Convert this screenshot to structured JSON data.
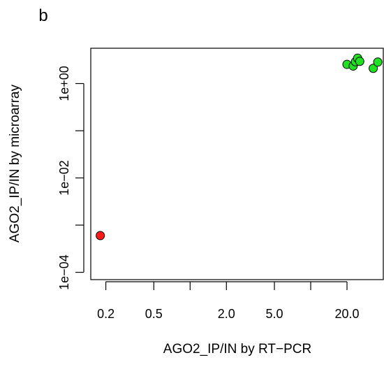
{
  "figure": {
    "panel_label": "b"
  },
  "chart_data": {
    "type": "scatter",
    "xlabel": "AGO2_IP/IN by RT−PCR",
    "ylabel": "AGO2_IP/IN by microarray",
    "x_scale": "log10",
    "y_scale": "log10",
    "xlim": [
      0.15,
      40
    ],
    "ylim": [
      7e-05,
      5.6
    ],
    "x_ticks": [
      0.1,
      0.2,
      0.5,
      1,
      2,
      5,
      10,
      20,
      50
    ],
    "x_tick_labels": [
      "",
      "0.2",
      "0.5",
      "",
      "2.0",
      "5.0",
      "",
      "20.0",
      ""
    ],
    "y_ticks": [
      0.0001,
      0.001,
      0.01,
      0.1,
      1
    ],
    "y_tick_labels": [
      "1e−04",
      "",
      "1e−02",
      "",
      "1e+00"
    ],
    "grid": false,
    "legend": "none",
    "points": [
      {
        "x": 0.18,
        "y": 0.0006,
        "color": "#ff1a1a"
      },
      {
        "x": 20.0,
        "y": 2.55
      },
      {
        "x": 22.5,
        "y": 2.35
      },
      {
        "x": 23.5,
        "y": 2.9
      },
      {
        "x": 24.5,
        "y": 3.45
      },
      {
        "x": 25.5,
        "y": 2.95
      },
      {
        "x": 33.0,
        "y": 2.1
      },
      {
        "x": 36.0,
        "y": 2.85
      }
    ],
    "colors": {
      "default_point": "#22e022",
      "outlier_point": "#ff1a1a",
      "point_stroke": "#000000"
    }
  }
}
